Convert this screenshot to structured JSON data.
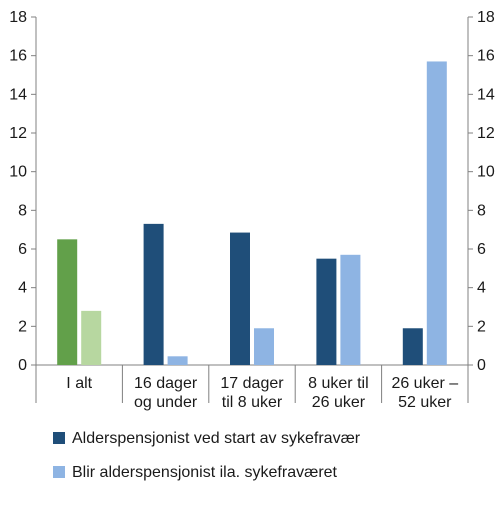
{
  "chart_data": {
    "type": "bar",
    "categories": [
      [
        "I alt"
      ],
      [
        "16 dager",
        "og under"
      ],
      [
        "17 dager",
        "til 8 uker"
      ],
      [
        "8 uker til",
        "26 uker"
      ],
      [
        "26 uker –",
        "52 uker"
      ]
    ],
    "series": [
      {
        "name": "Alderspensjonist ved start av sykefravær",
        "values": [
          6.5,
          7.3,
          6.85,
          5.5,
          1.9
        ],
        "color": "#1f4e79",
        "first_color": "#62a04a"
      },
      {
        "name": "Blir alderspensjonist ila. sykefraværet",
        "values": [
          2.8,
          0.45,
          1.9,
          5.7,
          15.7
        ],
        "color": "#8eb4e3",
        "first_color": "#b7d7a0"
      }
    ],
    "ylim": [
      0,
      18
    ],
    "yticks": [
      0,
      2,
      4,
      6,
      8,
      10,
      12,
      14,
      16,
      18
    ],
    "secondary_axis": true,
    "grid": false,
    "legend_position": "bottom-left"
  }
}
